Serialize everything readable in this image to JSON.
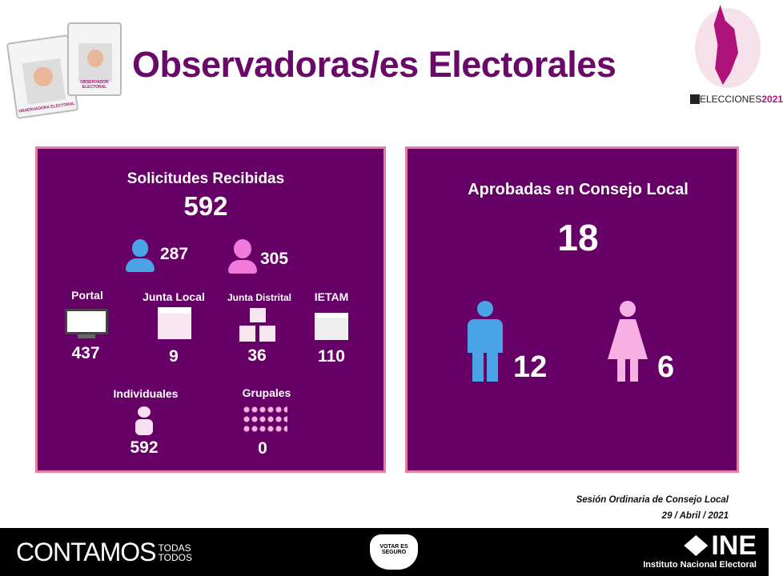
{
  "header": {
    "title": "Observadoras/es Electorales",
    "badge_left": "OBSERVADORA ELECTORAL",
    "badge_right": "OBSERVADOR ELECTORAL",
    "elecciones_logo": "ELECCIONES",
    "elecciones_year": "2021"
  },
  "left_panel": {
    "title": "Solicitudes Recibidas",
    "total": "592",
    "men": "287",
    "women": "305",
    "sources": [
      {
        "label": "Portal",
        "value": "437"
      },
      {
        "label": "Junta Local",
        "value": "9"
      },
      {
        "label": "Junta Distrital",
        "value": "36"
      },
      {
        "label": "IETAM",
        "value": "110"
      }
    ],
    "types": [
      {
        "label": "Individuales",
        "value": "592"
      },
      {
        "label": "Grupales",
        "value": "0"
      }
    ]
  },
  "right_panel": {
    "title": "Aprobadas en Consejo Local",
    "total": "18",
    "men": "12",
    "women": "6"
  },
  "session": {
    "line1": "Sesión Ordinaria de Consejo Local",
    "line2": "29 / Abril / 2021"
  },
  "footer": {
    "contamos": "CONTAMOS",
    "todas": "TODAS",
    "todos": "TODOS",
    "mask_text": "VOTAR ES SEGURO",
    "ine": "INE",
    "ine_full": "Instituto Nacional Electoral"
  },
  "colors": {
    "panel": "#660066",
    "border": "#e77ca6",
    "title": "#6a0a68",
    "male": "#4aa3e6",
    "female": "#f07ad8"
  }
}
